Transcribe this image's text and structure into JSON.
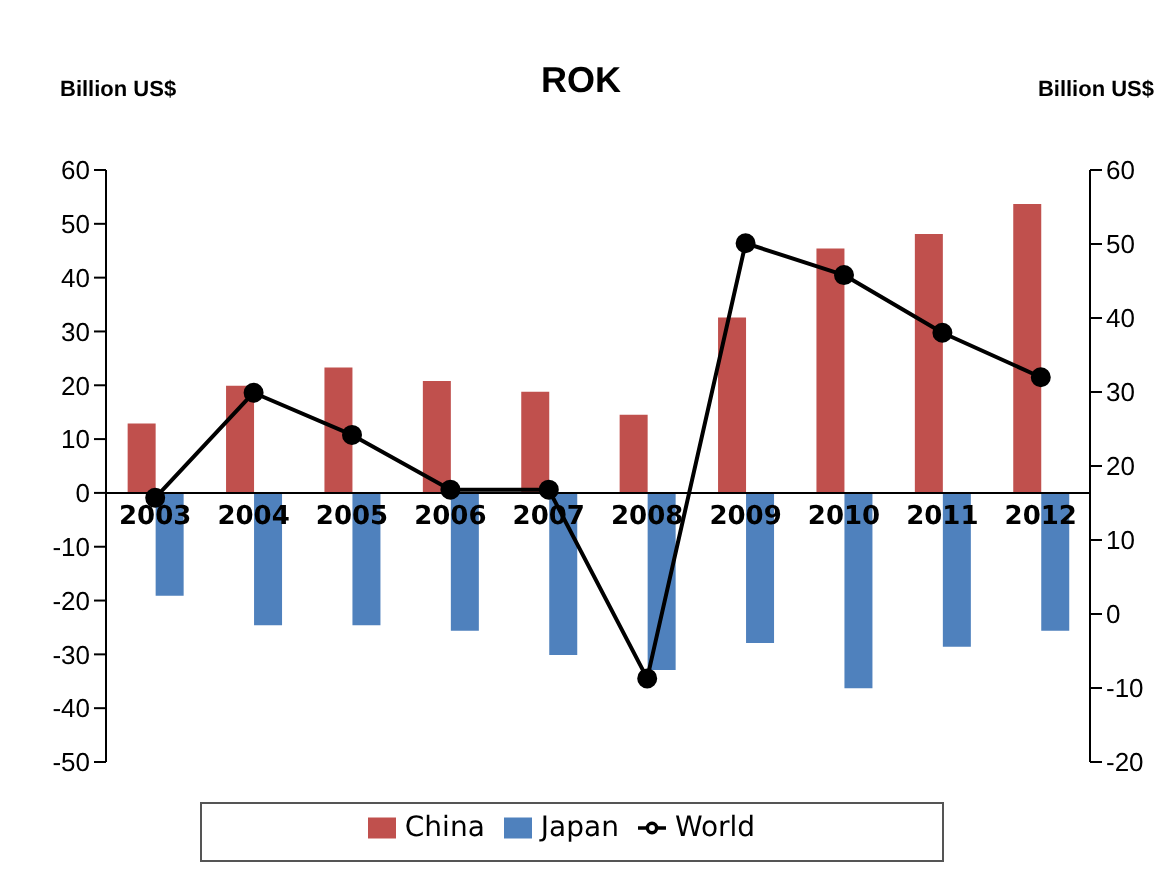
{
  "chart_data": {
    "type": "bar",
    "title": "ROK",
    "ylabel": "Billion US$",
    "y2label": "Billion US$",
    "categories": [
      "2003",
      "2004",
      "2005",
      "2006",
      "2007",
      "2008",
      "2009",
      "2010",
      "2011",
      "2012"
    ],
    "series": [
      {
        "name": "China",
        "color": "#c0504d",
        "values": [
          12.9,
          19.9,
          23.3,
          20.8,
          18.8,
          14.5,
          32.6,
          45.4,
          48.1,
          53.7
        ]
      },
      {
        "name": "Japan",
        "color": "#4f81bd",
        "values": [
          -19.1,
          -24.6,
          -24.6,
          -25.6,
          -30.1,
          -32.9,
          -27.9,
          -36.3,
          -28.6,
          -25.6
        ]
      },
      {
        "name": "World",
        "type": "line",
        "axis": "y2",
        "color": "#000000",
        "values": [
          15.7,
          29.9,
          24.2,
          16.8,
          16.8,
          -8.7,
          50.1,
          45.8,
          38.0,
          32.0
        ]
      }
    ],
    "ylim": [
      -50,
      60
    ],
    "yticks": [
      -50,
      -40,
      -30,
      -20,
      -10,
      0,
      10,
      20,
      30,
      40,
      50,
      60
    ],
    "y2lim": [
      -20,
      60
    ],
    "y2ticks": [
      -20,
      -10,
      0,
      10,
      20,
      30,
      40,
      50,
      60
    ],
    "legend": "bottom",
    "marker": "circle"
  }
}
